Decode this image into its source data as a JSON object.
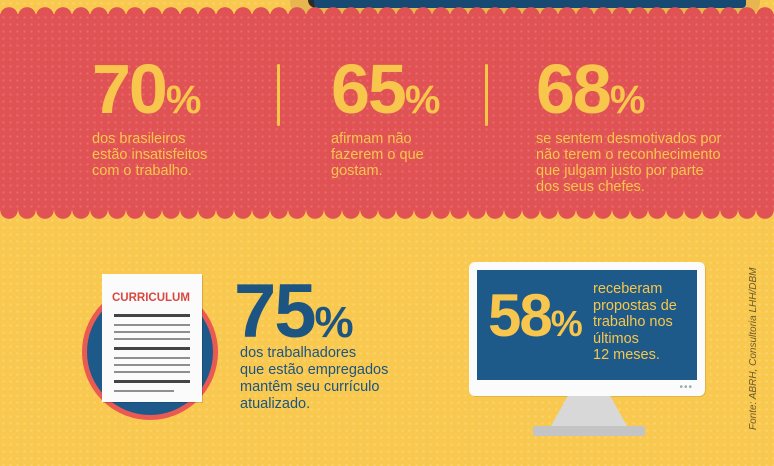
{
  "stats_top": [
    {
      "number": "70",
      "percent": "%",
      "lines": [
        "dos brasileiros",
        "estão insatisfeitos",
        "com o trabalho."
      ]
    },
    {
      "number": "65",
      "percent": "%",
      "lines": [
        "afirmam não",
        "fazerem o que",
        "gostam."
      ]
    },
    {
      "number": "68",
      "percent": "%",
      "lines": [
        "se sentem desmotivados por",
        "não terem o reconhecimento",
        "que julgam justo por parte",
        "dos seus chefes."
      ]
    }
  ],
  "curriculum": {
    "header": "CURRICULUM",
    "number": "75",
    "percent": "%",
    "lines": [
      "dos trabalhadores",
      "que estão empregados",
      "mantêm seu currículo",
      "atualizado."
    ]
  },
  "monitor": {
    "number": "58",
    "percent": "%",
    "lines": [
      "receberam",
      "propostas de",
      "trabalho nos",
      "últimos",
      "12 meses."
    ],
    "dots": "•••"
  },
  "source": "Fonte: ABRH, Consultoria LHH/DBM",
  "colors": {
    "background": "#f9c94f",
    "band": "#e05253",
    "accent_yellow": "#f8c64c",
    "blue": "#1c5482"
  }
}
